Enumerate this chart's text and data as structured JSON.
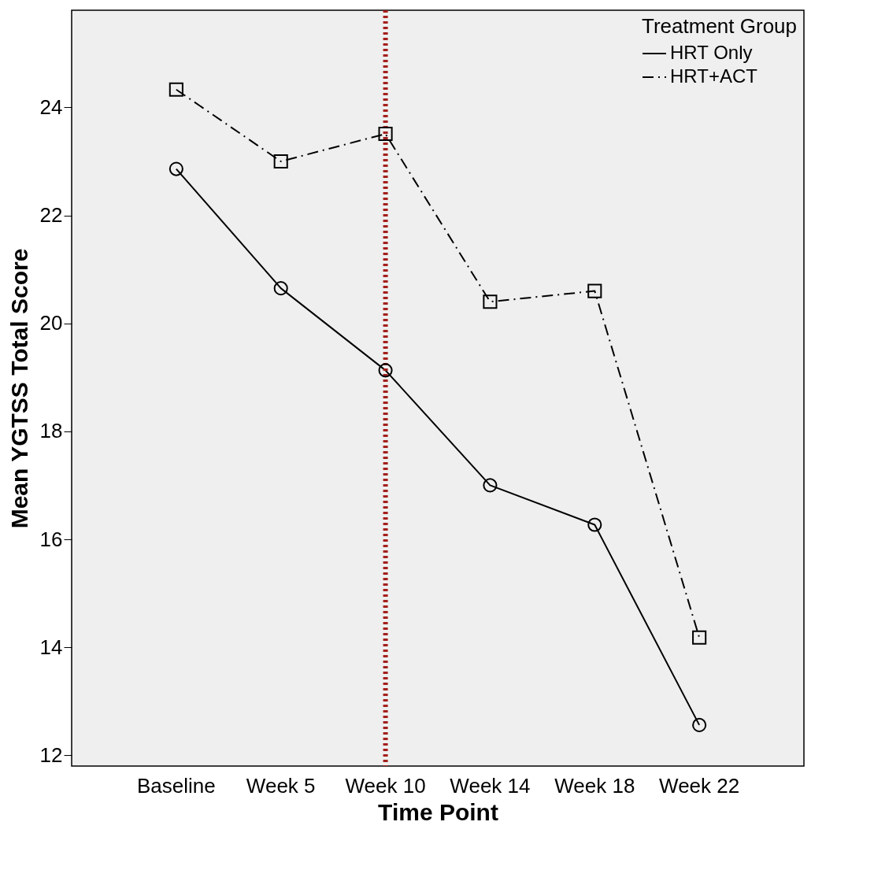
{
  "chart_data": {
    "type": "line",
    "xlabel": "Time Point",
    "ylabel": "Mean YGTSS Total Score",
    "legend_title": "Treatment Group",
    "legend": "top right",
    "grid": false,
    "categories": [
      "Baseline",
      "Week 5",
      "Week 10",
      "Week 14",
      "Week 18",
      "Week 22"
    ],
    "ylim": [
      11.8,
      25.8
    ],
    "yticks": [
      12,
      14,
      16,
      18,
      20,
      22,
      24
    ],
    "series": [
      {
        "name": "HRT Only",
        "color": "#000000",
        "marker": "circle",
        "line_style": "solid",
        "values": [
          22.86,
          20.65,
          19.13,
          17.0,
          16.27,
          12.56
        ]
      },
      {
        "name": "HRT+ACT",
        "color": "#000000",
        "marker": "square",
        "line_style": "dashdot",
        "values": [
          24.33,
          23.0,
          23.51,
          20.4,
          20.6,
          14.18
        ]
      }
    ],
    "ref_lines": [
      {
        "axis": "x",
        "value": "Week 10",
        "color": "#a3201c",
        "line_style": "dotted"
      }
    ]
  }
}
